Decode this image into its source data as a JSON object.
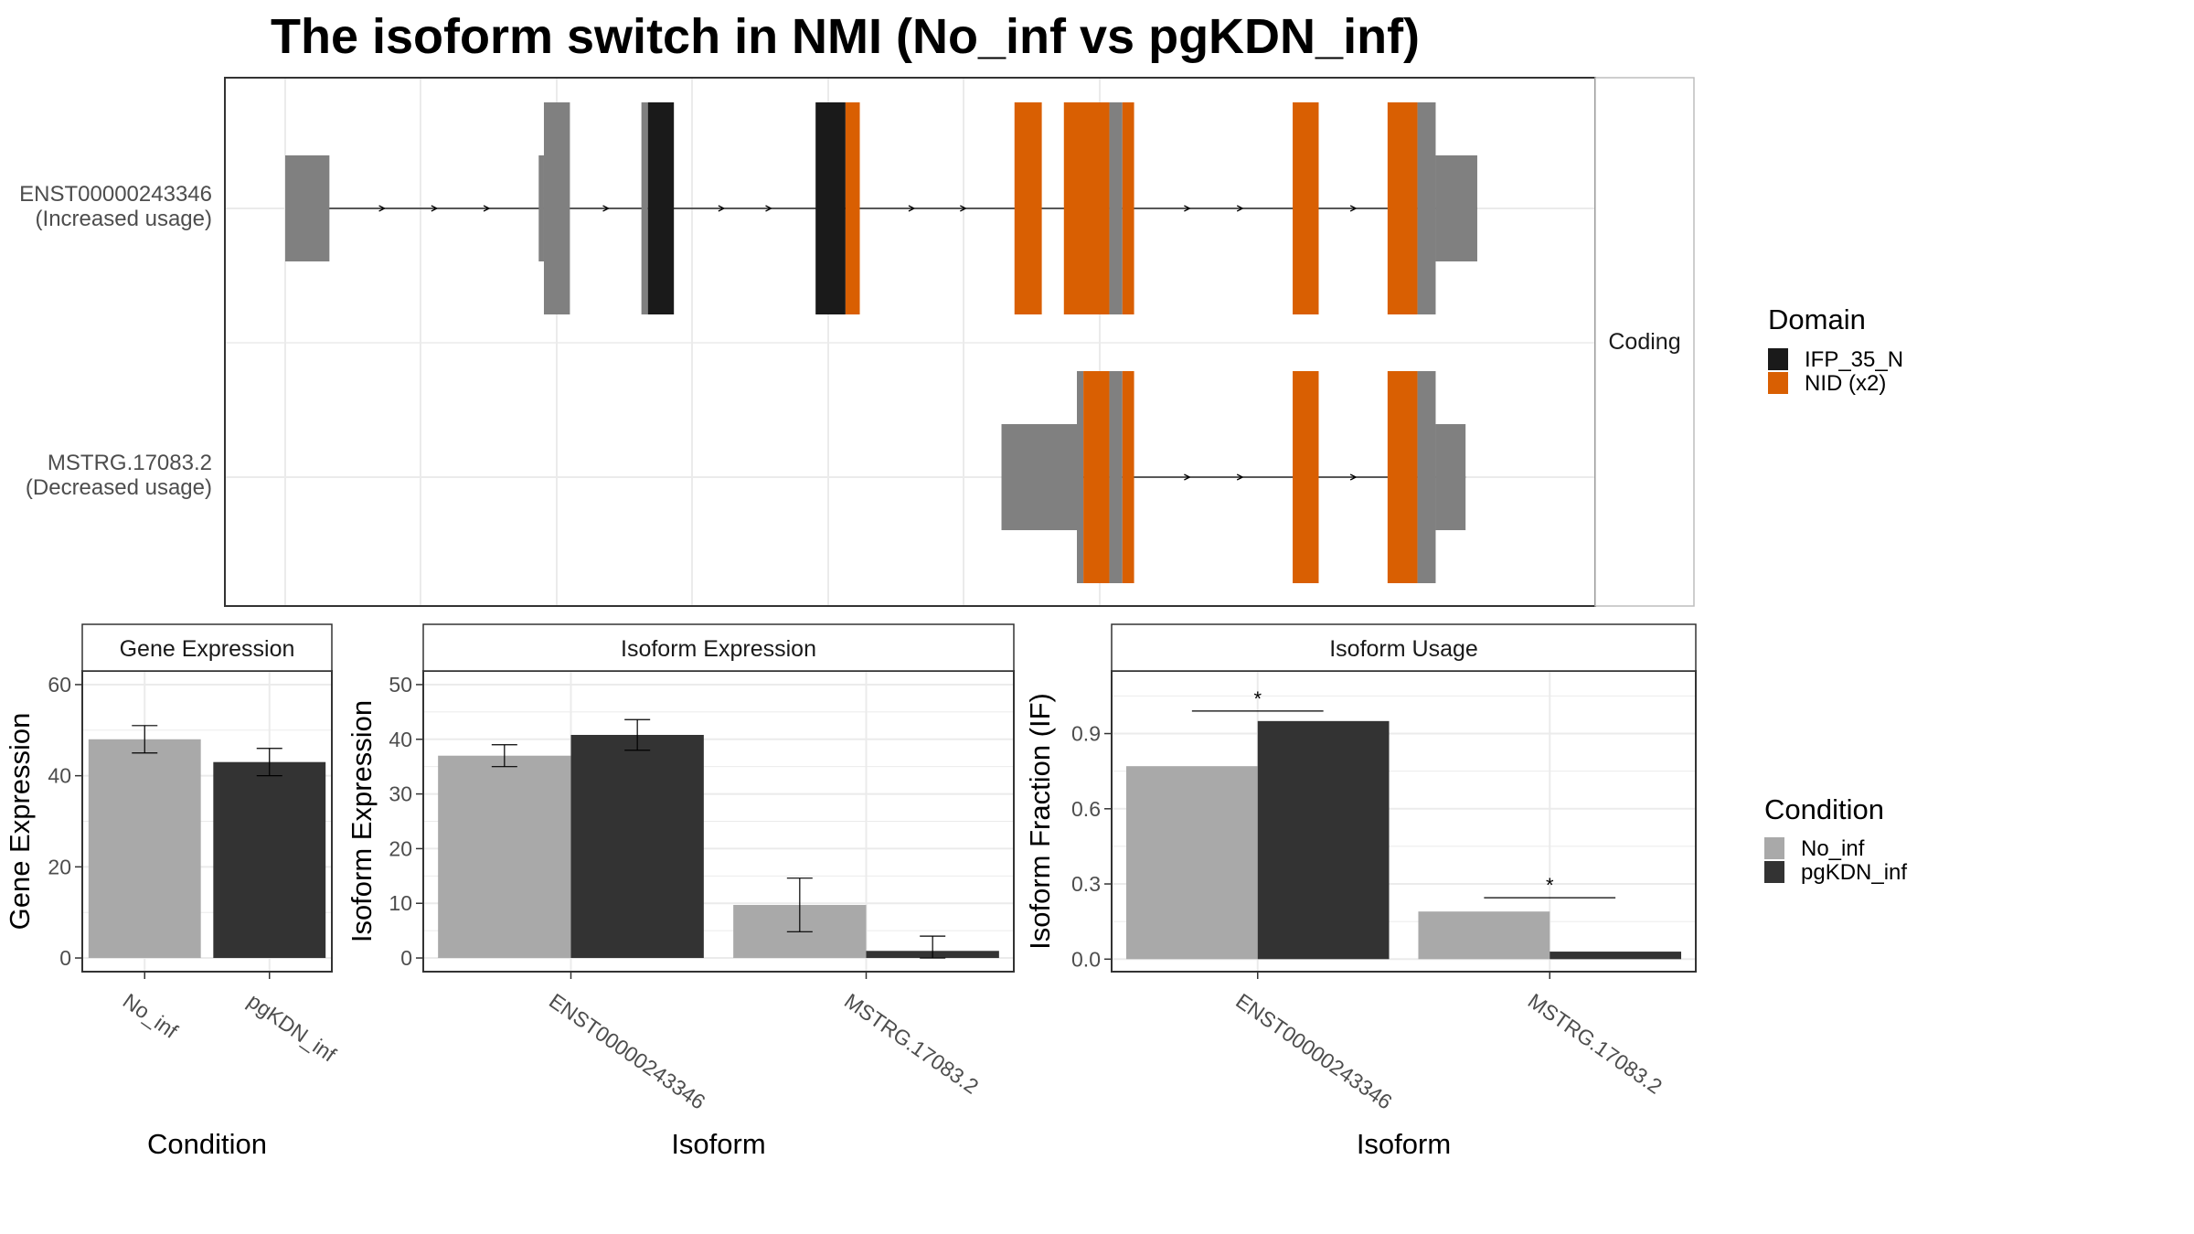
{
  "title": "The isoform switch in NMI (No_inf vs pgKDN_inf)",
  "colors": {
    "utr": "#808080",
    "IFP_35_N": "#1a1a1a",
    "NID": "#d95f02",
    "No_inf": "#a9a9a9",
    "pgKDN_inf": "#333333",
    "panel_border": "#333333",
    "strip_fill": "#ffffff",
    "grid": "#ebebeb"
  },
  "chart_data": [
    {
      "type": "gene-structure",
      "facet_label": "Coding",
      "genomic_range": [
        0,
        1000
      ],
      "isoforms": [
        {
          "name": "ENST00000243346",
          "usage": "(Increased usage)",
          "transcript_span": [
            0,
            917
          ],
          "exons": [
            {
              "start": 0,
              "end": 34,
              "kind": "utr"
            },
            {
              "start": 195,
              "end": 199,
              "kind": "utr"
            },
            {
              "start": 199,
              "end": 219,
              "kind": "cds"
            },
            {
              "start": 274,
              "end": 279,
              "kind": "cds"
            },
            {
              "start": 279,
              "end": 299,
              "kind": "IFP_35_N"
            },
            {
              "start": 408,
              "end": 431,
              "kind": "IFP_35_N"
            },
            {
              "start": 431,
              "end": 442,
              "kind": "NID"
            },
            {
              "start": 561,
              "end": 582,
              "kind": "NID"
            },
            {
              "start": 599,
              "end": 634,
              "kind": "NID"
            },
            {
              "start": 634,
              "end": 644,
              "kind": "cds"
            },
            {
              "start": 644,
              "end": 653,
              "kind": "NID"
            },
            {
              "start": 775,
              "end": 795,
              "kind": "NID"
            },
            {
              "start": 848,
              "end": 871,
              "kind": "NID"
            },
            {
              "start": 871,
              "end": 885,
              "kind": "cds"
            },
            {
              "start": 885,
              "end": 917,
              "kind": "utr"
            }
          ]
        },
        {
          "name": "MSTRG.17083.2",
          "usage": "(Decreased usage)",
          "transcript_span": [
            551,
            908
          ],
          "exons": [
            {
              "start": 551,
              "end": 609,
              "kind": "utr"
            },
            {
              "start": 609,
              "end": 614,
              "kind": "cds"
            },
            {
              "start": 614,
              "end": 634,
              "kind": "NID"
            },
            {
              "start": 634,
              "end": 644,
              "kind": "cds"
            },
            {
              "start": 644,
              "end": 653,
              "kind": "NID"
            },
            {
              "start": 775,
              "end": 795,
              "kind": "NID"
            },
            {
              "start": 848,
              "end": 871,
              "kind": "NID"
            },
            {
              "start": 871,
              "end": 885,
              "kind": "cds"
            },
            {
              "start": 885,
              "end": 908,
              "kind": "utr"
            }
          ]
        }
      ],
      "legend": {
        "title": "Domain",
        "items": [
          "IFP_35_N",
          "NID (x2)"
        ]
      }
    },
    {
      "type": "bar",
      "strip": "Gene Expression",
      "categories": [
        "No_inf",
        "pgKDN_inf"
      ],
      "values": [
        48,
        43
      ],
      "errors": [
        [
          45,
          51
        ],
        [
          40,
          46
        ]
      ],
      "xlabel": "Condition",
      "ylabel": "Gene Expression",
      "ylim": [
        -3,
        63
      ],
      "yticks": [
        0,
        20,
        40,
        60
      ]
    },
    {
      "type": "bar",
      "strip": "Isoform Expression",
      "categories": [
        "ENST00000243346",
        "MSTRG.17083.2"
      ],
      "series": [
        {
          "name": "No_inf",
          "values": [
            37,
            9.7
          ],
          "errors": [
            [
              35,
              39
            ],
            [
              4.8,
              14.6
            ]
          ]
        },
        {
          "name": "pgKDN_inf",
          "values": [
            40.8,
            1.3
          ],
          "errors": [
            [
              38,
              43.6
            ],
            [
              0,
              4
            ]
          ]
        }
      ],
      "xlabel": "Isoform",
      "ylabel": "Isoform Expression",
      "ylim": [
        -2.5,
        52.5
      ],
      "yticks": [
        0,
        10,
        20,
        30,
        40,
        50
      ]
    },
    {
      "type": "bar",
      "strip": "Isoform Usage",
      "categories": [
        "ENST00000243346",
        "MSTRG.17083.2"
      ],
      "series": [
        {
          "name": "No_inf",
          "values": [
            0.77,
            0.19
          ]
        },
        {
          "name": "pgKDN_inf",
          "values": [
            0.95,
            0.03
          ]
        }
      ],
      "significance": [
        {
          "category": "ENST00000243346",
          "y": 0.99,
          "label": "*"
        },
        {
          "category": "MSTRG.17083.2",
          "y": 0.245,
          "label": "*"
        }
      ],
      "xlabel": "Isoform",
      "ylabel": "Isoform Fraction (IF)",
      "ylim": [
        -0.05,
        1.15
      ],
      "yticks": [
        "0.0",
        "0.3",
        "0.6",
        "0.9"
      ]
    }
  ],
  "condition_legend": {
    "title": "Condition",
    "items": [
      "No_inf",
      "pgKDN_inf"
    ]
  }
}
